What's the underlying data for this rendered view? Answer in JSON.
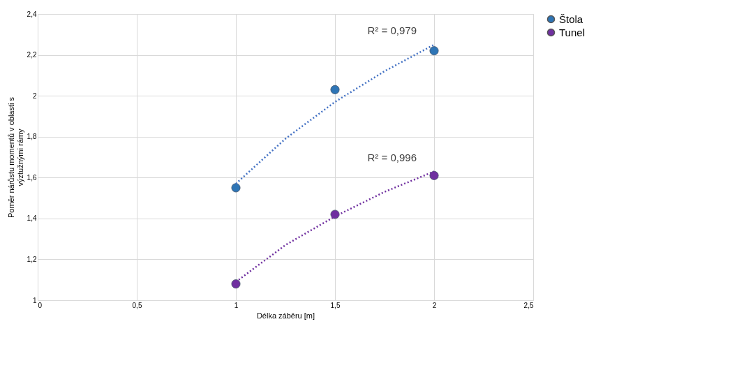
{
  "chart_data": {
    "type": "scatter",
    "xlabel": "Délka záběru [m]",
    "ylabel": "Poměr nárůstu momentů v oblasti s výztužnými rámy",
    "xlim": [
      0,
      2.5
    ],
    "xticks": [
      0,
      {
        "value": 0.5,
        "label": "0,5"
      },
      1,
      {
        "value": 1.5,
        "label": "1,5"
      },
      2,
      {
        "value": 2.5,
        "label": "2,5"
      }
    ],
    "ylim": [
      1,
      2.4
    ],
    "yticks": [
      1,
      {
        "value": 1.2,
        "label": "1,2"
      },
      {
        "value": 1.4,
        "label": "1,4"
      },
      {
        "value": 1.6,
        "label": "1,6"
      },
      {
        "value": 1.8,
        "label": "1,8"
      },
      2,
      {
        "value": 2.2,
        "label": "2,2"
      },
      {
        "value": 2.4,
        "label": "2,4"
      }
    ],
    "grid": true,
    "legend": "right",
    "marker": "circle",
    "series": [
      {
        "name": "Štola",
        "color": "#2e75b6",
        "x": [
          1,
          1.5,
          2
        ],
        "values": [
          1.55,
          2.03,
          2.22
        ]
      },
      {
        "name": "Tunel",
        "color": "#7030a0",
        "x": [
          1,
          1.5,
          2
        ],
        "values": [
          1.08,
          1.42,
          1.61
        ]
      },
      {
        "type": "line",
        "color": "#4472c4",
        "line_style": "dotted",
        "marker": "none",
        "x": [
          1,
          1.25,
          1.5,
          1.75,
          2
        ],
        "values": [
          1.57,
          1.79,
          1.97,
          2.12,
          2.25
        ]
      },
      {
        "type": "line",
        "color": "#7030a0",
        "line_style": "dotted",
        "marker": "none",
        "x": [
          1,
          1.25,
          1.5,
          1.75,
          2
        ],
        "values": [
          1.09,
          1.27,
          1.41,
          1.53,
          1.63
        ]
      }
    ],
    "annotations": [
      "R² = 0,979",
      "R² = 0,996"
    ]
  }
}
